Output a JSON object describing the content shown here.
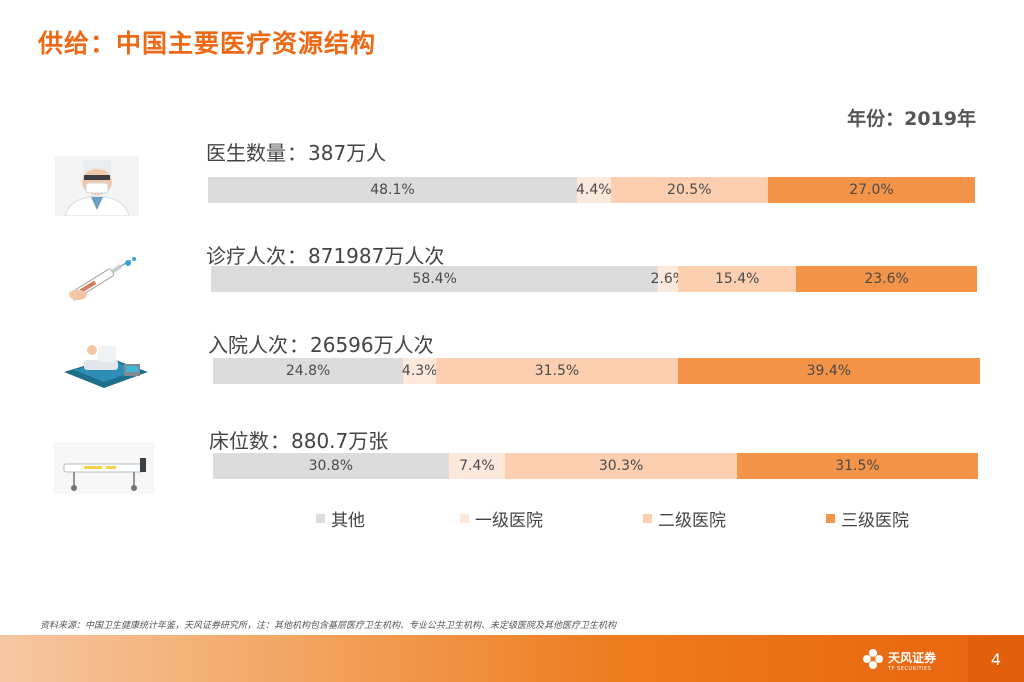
{
  "title": "供给：中国主要医疗资源结构",
  "year_label": "年份：2019年",
  "rows": [
    {
      "label": "医生数量",
      "sep": "：",
      "value": "387万人"
    },
    {
      "label": "诊疗人次",
      "sep": "：",
      "value": "871987万人次"
    },
    {
      "label": "入院人次",
      "sep": "：",
      "value": "26596万人次"
    },
    {
      "label": "床位数",
      "sep": "：",
      "value": "880.7万张"
    }
  ],
  "chart_data": {
    "type": "bar",
    "orientation": "horizontal",
    "stacked": true,
    "percent_stacked": true,
    "categories": [
      "医生数量",
      "诊疗人次",
      "入院人次",
      "床位数"
    ],
    "series": [
      {
        "name": "其他",
        "color": "#dcdcdc",
        "values": [
          48.1,
          58.4,
          24.8,
          30.8
        ],
        "labels": [
          "48.1%",
          "58.4%",
          "24.8%",
          "30.8%"
        ]
      },
      {
        "name": "一级医院",
        "color": "#fde9dc",
        "values": [
          4.4,
          2.6,
          4.3,
          7.4
        ],
        "labels": [
          "4.4%",
          "2.6%",
          "4.3%",
          "7.4%"
        ]
      },
      {
        "name": "二级医院",
        "color": "#fbcfaf",
        "values": [
          20.5,
          15.4,
          31.5,
          30.3
        ],
        "labels": [
          "20.5%",
          "15.4%",
          "31.5%",
          "30.3%"
        ]
      },
      {
        "name": "三级医院",
        "color": "#f39448",
        "values": [
          27.0,
          23.6,
          39.4,
          31.5
        ],
        "labels": [
          "27.0%",
          "23.6%",
          "39.4%",
          "31.5%"
        ]
      }
    ],
    "legend_position": "bottom",
    "grid": false
  },
  "legend": [
    {
      "name": "其他",
      "color": "#dcdcdc"
    },
    {
      "name": "一级医院",
      "color": "#fde9dc"
    },
    {
      "name": "二级医院",
      "color": "#fbcfaf"
    },
    {
      "name": "三级医院",
      "color": "#f39448"
    }
  ],
  "source": "资料来源：中国卫生健康统计年鉴，天风证券研究所，注：其他机构包含基层医疗卫生机构、专业公共卫生机构、未定级医院及其他医疗卫生机构",
  "brand": {
    "name": "天风证券",
    "sub": "TF SECURITIES",
    "color": "#ffffff"
  },
  "page_number": "4",
  "icons": [
    "doctor-icon",
    "syringe-icon",
    "hospital-bed-patient-icon",
    "hospital-bed-icon",
    "tf-flower-logo-icon"
  ]
}
